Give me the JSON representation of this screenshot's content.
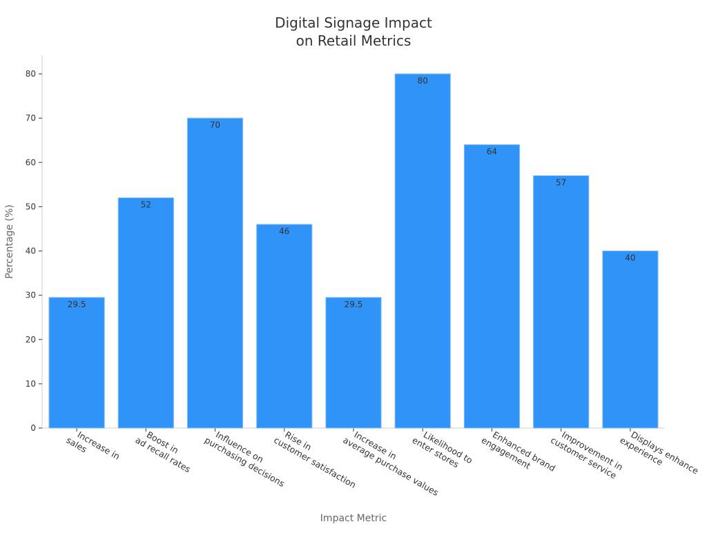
{
  "chart_data": {
    "type": "bar",
    "title": "Digital Signage Impact\non Retail Metrics",
    "xlabel": "Impact Metric",
    "ylabel": "Percentage (%)",
    "ylim": [
      0,
      80
    ],
    "yticks": [
      0,
      10,
      20,
      30,
      40,
      50,
      60,
      70,
      80
    ],
    "categories": [
      "Increase in\nsales",
      "Boost in\nad recall rates",
      "Influence on\npurchasing decisions",
      "Rise in\ncustomer satisfaction",
      "Increase in\naverage purchase values",
      "Likelihood to\nenter stores",
      "Enhanced brand\nengagement",
      "Improvement in\ncustomer service",
      "Displays enhance\nexperience"
    ],
    "values": [
      29.5,
      52,
      70,
      46,
      29.5,
      80,
      64,
      57,
      40
    ],
    "grid": false,
    "bar_color": "#2f93f7"
  }
}
